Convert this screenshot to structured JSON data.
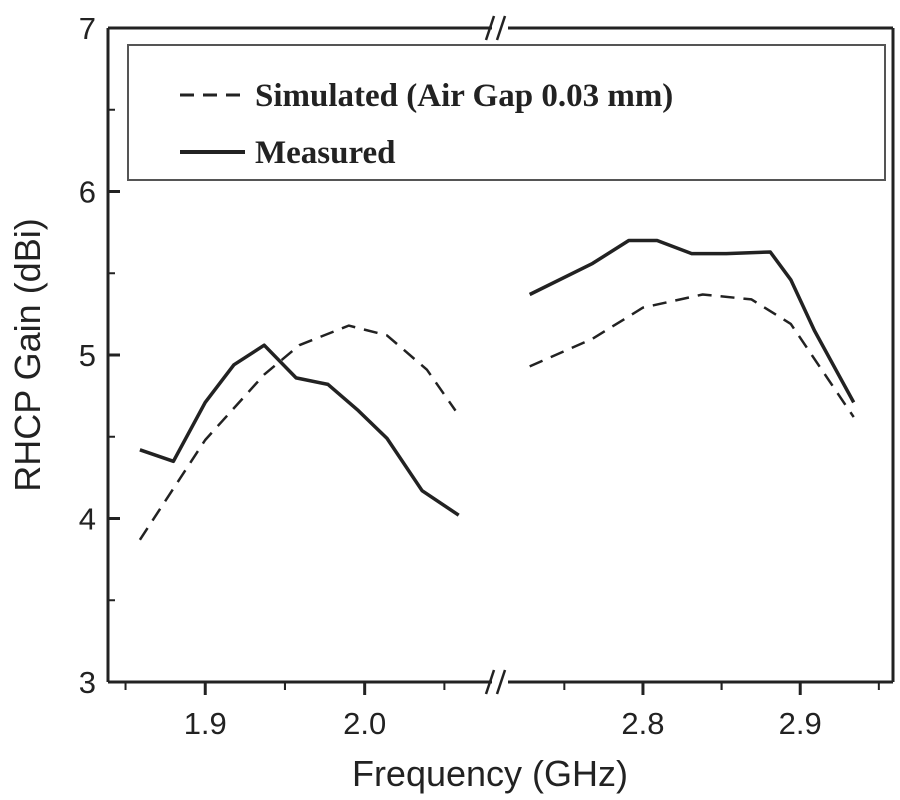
{
  "chart_data": {
    "type": "line",
    "title": "",
    "xlabel": "Frequency (GHz)",
    "ylabel": "RHCP Gain (dBi)",
    "ylim": [
      3,
      7
    ],
    "yticks": [
      "3",
      "4",
      "5",
      "6",
      "7"
    ],
    "x_axis_break": true,
    "x_segments": [
      {
        "xlim": [
          1.839,
          2.083
        ],
        "ticks": [
          "1.9",
          "2.0"
        ]
      },
      {
        "xlim": [
          2.711,
          2.959
        ],
        "ticks": [
          "2.8",
          "2.9"
        ]
      }
    ],
    "grid": false,
    "legend_placement": "top",
    "series": [
      {
        "name": "Simulated (Air Gap 0.03 mm)",
        "style": "dashed",
        "color": "#222222",
        "segments": [
          {
            "x": [
              1.859,
              1.9,
              1.937,
              1.959,
              1.99,
              2.014,
              2.039,
              2.057
            ],
            "y": [
              3.87,
              4.48,
              4.88,
              5.06,
              5.18,
              5.12,
              4.91,
              4.66
            ]
          },
          {
            "x": [
              2.728,
              2.768,
              2.8,
              2.838,
              2.869,
              2.894,
              2.934
            ],
            "y": [
              4.93,
              5.1,
              5.29,
              5.37,
              5.34,
              5.19,
              4.62
            ]
          }
        ]
      },
      {
        "name": "Measured",
        "style": "solid",
        "color": "#222222",
        "segments": [
          {
            "x": [
              1.859,
              1.88,
              1.9,
              1.918,
              1.937,
              1.957,
              1.977,
              1.996,
              2.014,
              2.036,
              2.059
            ],
            "y": [
              4.42,
              4.35,
              4.71,
              4.94,
              5.06,
              4.86,
              4.82,
              4.66,
              4.49,
              4.17,
              4.02
            ]
          },
          {
            "x": [
              2.728,
              2.768,
              2.791,
              2.809,
              2.831,
              2.853,
              2.881,
              2.894,
              2.909,
              2.934
            ],
            "y": [
              5.37,
              5.56,
              5.7,
              5.7,
              5.62,
              5.62,
              5.63,
              5.46,
              5.15,
              4.71
            ]
          }
        ]
      }
    ]
  }
}
